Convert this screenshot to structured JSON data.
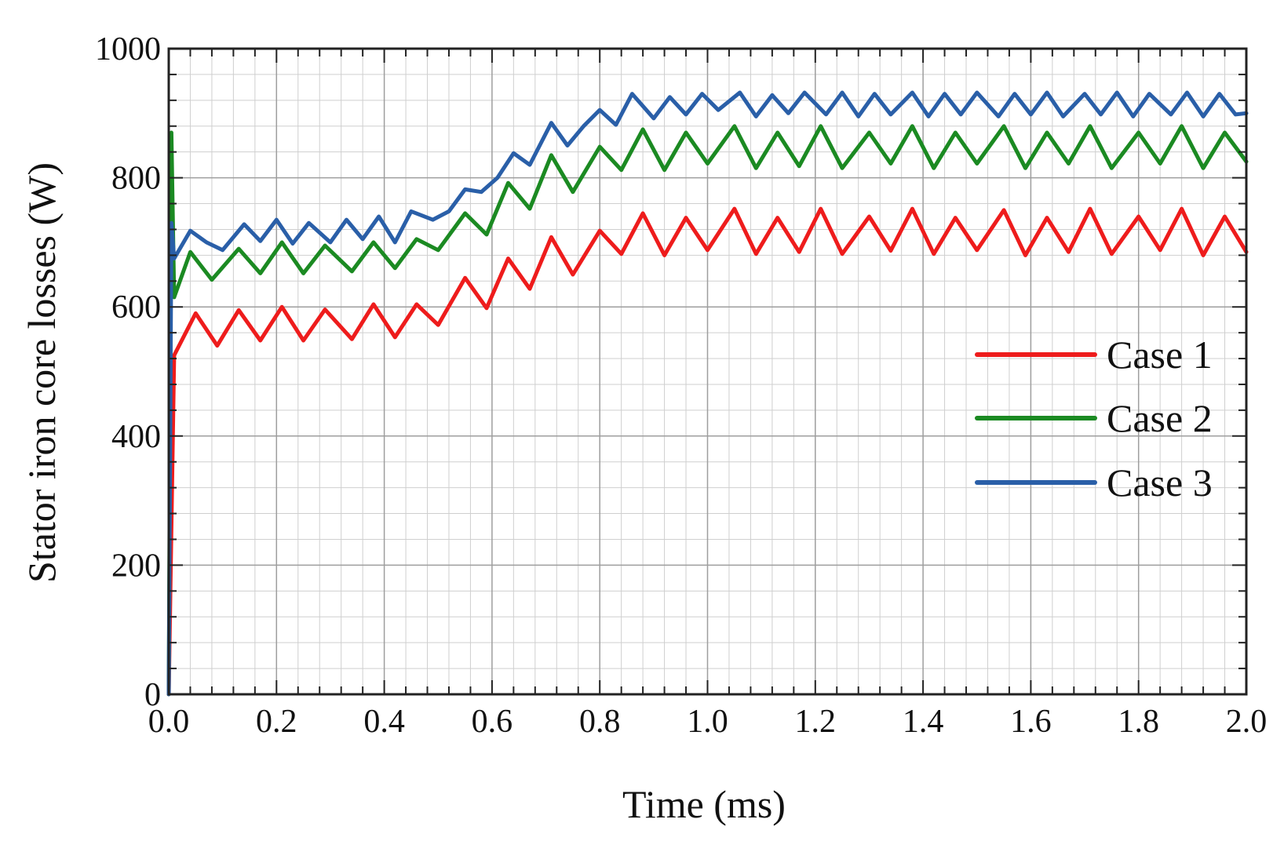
{
  "chart_data": {
    "type": "line",
    "title": "",
    "xlabel": "Time (ms)",
    "ylabel": "Stator iron core losses (W)",
    "xlim": [
      0.0,
      2.0
    ],
    "ylim": [
      0,
      1000
    ],
    "xticks": [
      "0.0",
      "0.2",
      "0.4",
      "0.6",
      "0.8",
      "1.0",
      "1.2",
      "1.4",
      "1.6",
      "1.8",
      "2.0"
    ],
    "yticks": [
      "0",
      "200",
      "400",
      "600",
      "800",
      "1000"
    ],
    "grid": true,
    "legend_position": "right-middle",
    "series": [
      {
        "name": "Case 1",
        "color": "#ee1c1c",
        "x": [
          0.0,
          0.01,
          0.05,
          0.09,
          0.13,
          0.17,
          0.21,
          0.25,
          0.29,
          0.34,
          0.38,
          0.42,
          0.46,
          0.5,
          0.55,
          0.59,
          0.63,
          0.67,
          0.71,
          0.75,
          0.8,
          0.84,
          0.88,
          0.92,
          0.96,
          1.0,
          1.05,
          1.09,
          1.13,
          1.17,
          1.21,
          1.25,
          1.3,
          1.34,
          1.38,
          1.42,
          1.46,
          1.5,
          1.55,
          1.59,
          1.63,
          1.67,
          1.71,
          1.75,
          1.8,
          1.84,
          1.88,
          1.92,
          1.96,
          2.0
        ],
        "y": [
          0,
          525,
          590,
          540,
          595,
          548,
          600,
          548,
          596,
          550,
          604,
          553,
          604,
          572,
          645,
          598,
          675,
          628,
          708,
          650,
          718,
          682,
          745,
          680,
          738,
          688,
          752,
          682,
          738,
          685,
          752,
          682,
          740,
          687,
          752,
          682,
          738,
          688,
          750,
          680,
          738,
          685,
          752,
          682,
          740,
          688,
          752,
          680,
          740,
          685
        ]
      },
      {
        "name": "Case 2",
        "color": "#1b8a22",
        "x": [
          0.0,
          0.005,
          0.01,
          0.04,
          0.08,
          0.13,
          0.17,
          0.21,
          0.25,
          0.29,
          0.34,
          0.38,
          0.42,
          0.46,
          0.5,
          0.55,
          0.59,
          0.63,
          0.67,
          0.71,
          0.75,
          0.8,
          0.84,
          0.88,
          0.92,
          0.96,
          1.0,
          1.05,
          1.09,
          1.13,
          1.17,
          1.21,
          1.25,
          1.3,
          1.34,
          1.38,
          1.42,
          1.46,
          1.5,
          1.55,
          1.59,
          1.63,
          1.67,
          1.71,
          1.75,
          1.8,
          1.84,
          1.88,
          1.92,
          1.96,
          2.0
        ],
        "y": [
          0,
          870,
          615,
          685,
          642,
          690,
          652,
          700,
          652,
          695,
          655,
          700,
          660,
          705,
          688,
          745,
          712,
          792,
          752,
          835,
          778,
          848,
          812,
          875,
          812,
          870,
          822,
          880,
          815,
          870,
          818,
          880,
          815,
          870,
          822,
          880,
          815,
          870,
          822,
          880,
          815,
          870,
          822,
          880,
          815,
          870,
          822,
          880,
          815,
          870,
          825
        ]
      },
      {
        "name": "Case 3",
        "color": "#2a5fa8",
        "x": [
          0.0,
          0.005,
          0.01,
          0.04,
          0.07,
          0.1,
          0.14,
          0.17,
          0.2,
          0.23,
          0.26,
          0.3,
          0.33,
          0.36,
          0.39,
          0.42,
          0.45,
          0.49,
          0.52,
          0.55,
          0.58,
          0.61,
          0.64,
          0.67,
          0.71,
          0.74,
          0.77,
          0.8,
          0.83,
          0.86,
          0.9,
          0.93,
          0.96,
          0.99,
          1.02,
          1.06,
          1.09,
          1.12,
          1.15,
          1.18,
          1.22,
          1.25,
          1.28,
          1.31,
          1.34,
          1.38,
          1.41,
          1.44,
          1.47,
          1.5,
          1.54,
          1.57,
          1.6,
          1.63,
          1.66,
          1.7,
          1.73,
          1.76,
          1.79,
          1.82,
          1.86,
          1.89,
          1.92,
          1.95,
          1.98,
          2.0
        ],
        "y": [
          0,
          730,
          675,
          718,
          700,
          688,
          728,
          702,
          735,
          698,
          730,
          700,
          735,
          705,
          740,
          700,
          748,
          735,
          748,
          782,
          778,
          800,
          838,
          820,
          885,
          850,
          880,
          905,
          882,
          930,
          892,
          925,
          898,
          930,
          905,
          932,
          895,
          928,
          900,
          932,
          898,
          932,
          895,
          930,
          898,
          932,
          895,
          930,
          898,
          932,
          895,
          930,
          898,
          932,
          895,
          930,
          898,
          932,
          895,
          930,
          898,
          932,
          895,
          930,
          898,
          900
        ]
      }
    ]
  }
}
